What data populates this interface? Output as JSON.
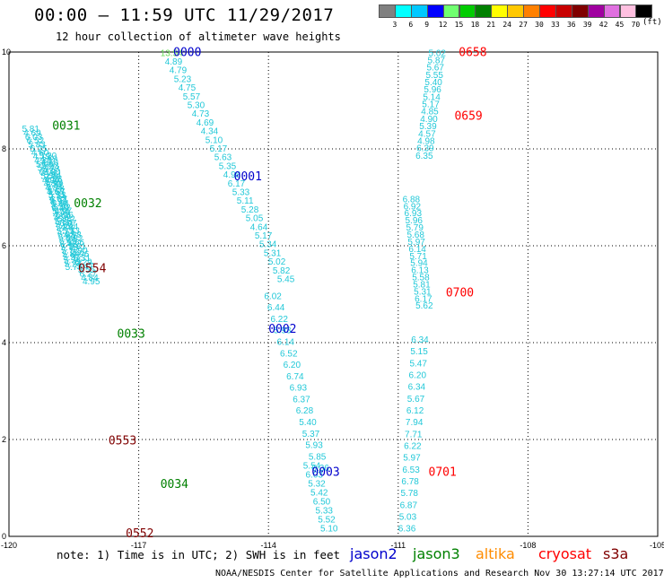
{
  "title": "00:00 — 11:59 UTC 11/29/2017",
  "subtitle": "12 hour collection of altimeter wave heights",
  "legend": {
    "unit": "(ft)",
    "bins": [
      {
        "label": "3",
        "color": "#808080"
      },
      {
        "label": "6",
        "color": "#00ffff"
      },
      {
        "label": "9",
        "color": "#00c8ff"
      },
      {
        "label": "12",
        "color": "#0000ff"
      },
      {
        "label": "15",
        "color": "#70ff70"
      },
      {
        "label": "18",
        "color": "#00cc00"
      },
      {
        "label": "21",
        "color": "#008000"
      },
      {
        "label": "24",
        "color": "#ffff00"
      },
      {
        "label": "27",
        "color": "#ffc800"
      },
      {
        "label": "30",
        "color": "#ff8000"
      },
      {
        "label": "33",
        "color": "#ff0000"
      },
      {
        "label": "36",
        "color": "#c80000"
      },
      {
        "label": "39",
        "color": "#800000"
      },
      {
        "label": "42",
        "color": "#a000a0"
      },
      {
        "label": "45",
        "color": "#e070e0"
      },
      {
        "label": "70",
        "color": "#ffc0e0"
      },
      {
        "label": "",
        "color": "#000000"
      }
    ]
  },
  "axes": {
    "x_ticks": [
      "-120",
      "-117",
      "-114",
      "-111",
      "-108",
      "-105"
    ],
    "y_ticks": [
      "0",
      "2",
      "4",
      "6",
      "8",
      "10"
    ],
    "xlim": [
      -120,
      -105
    ],
    "ylim": [
      0,
      10
    ],
    "grid": true
  },
  "footnote": "note: 1) Time is in UTC; 2) SWH is in feet",
  "satellites": [
    {
      "name": "jason2",
      "color": "#0000cc"
    },
    {
      "name": "jason3",
      "color": "#008000"
    },
    {
      "name": "altika",
      "color": "#ff8c00"
    },
    {
      "name": "cryosat",
      "color": "#ff0000"
    },
    {
      "name": "s3a",
      "color": "#800000"
    }
  ],
  "credit": "NOAA/NESDIS Center for Satellite Applications and Research   Nov 30 13:27:14 UTC 2017",
  "tracks": [
    {
      "label": "0000",
      "color": "#0000cc",
      "anchor": [
        -116.2,
        9.92
      ],
      "x0": -116.5,
      "x1": -113.8,
      "y0": 9.92,
      "y1": 5.25,
      "values": [
        "13.54",
        "4.89",
        "4.79",
        "5.23",
        "4.75",
        "5.57",
        "5.30",
        "4.73",
        "4.69",
        "4.34",
        "5.10",
        "5.17",
        "5.63",
        "5.35",
        "4.98",
        "6.17",
        "5.33",
        "5.11",
        "5.28",
        "5.05",
        "4.64",
        "5.17",
        "5.34",
        "5.31",
        "5.02",
        "5.82",
        "5.45"
      ]
    },
    {
      "label": "0001",
      "color": "#0000cc",
      "anchor": [
        -114.8,
        7.35
      ],
      "values": []
    },
    {
      "label": "0002",
      "color": "#0000cc",
      "anchor": [
        -114.0,
        4.2
      ],
      "x0": -114.1,
      "x1": -113.0,
      "y0": 4.9,
      "y1": 1.35,
      "values": [
        "6.02",
        "6.44",
        "6.22",
        "5.93",
        "6.14",
        "6.52",
        "6.20",
        "6.74",
        "6.93",
        "6.37",
        "6.28",
        "5.40",
        "5.37",
        "5.93",
        "5.85",
        "6.36"
      ]
    },
    {
      "label": "0003",
      "color": "#0000cc",
      "anchor": [
        -113.0,
        1.25
      ],
      "x0": -113.2,
      "x1": -112.8,
      "y0": 1.4,
      "y1": 0.1,
      "values": [
        "5.54",
        "6.03",
        "5.32",
        "5.42",
        "6.50",
        "5.33",
        "5.52",
        "5.10"
      ]
    },
    {
      "label": "0031",
      "color": "#008000",
      "anchor": [
        -119.0,
        8.4
      ],
      "x0": -119.7,
      "x1": -118.3,
      "y0": 8.35,
      "y1": 5.2,
      "values": [
        "5.81",
        "4.69",
        "6.03",
        "6.52",
        "5.83",
        "5.25",
        "4.60",
        "4.79",
        "4.26",
        "5.96",
        "5.77",
        "6.02",
        "5.58",
        "4.94",
        "4.59",
        "4.84",
        "4.68",
        "5.51",
        "6.37",
        "5.64",
        "5.32",
        "4.97",
        "5.16",
        "5.12",
        "6.07",
        "4.44",
        "5.33",
        "4.98",
        "6.82",
        "5.66",
        "5.81",
        "5.90",
        "4.96",
        "5.31",
        "6.29",
        "5.47",
        "5.55",
        "6.27",
        "4.84",
        "4.95"
      ]
    },
    {
      "label": "0032",
      "color": "#008000",
      "anchor": [
        -118.5,
        6.8
      ],
      "x0": -119.3,
      "x1": -118.7,
      "y0": 7.8,
      "y1": 5.5,
      "values": [
        "5.20",
        "4.79",
        "4.70",
        "5.23",
        "5.73",
        "5.80",
        "5.84",
        "4.98",
        "5.49",
        "5.52",
        "4.78",
        "5.57",
        "5.73",
        "4.62",
        "4.94",
        "5.40",
        "6.49",
        "5.54",
        "4.88",
        "4.92",
        "5.83",
        "5.60",
        "5.78",
        "5.71",
        "6.02",
        "6.90",
        "6.49",
        "6.48",
        "5.75",
        "5.77",
        "5.84",
        "5.57",
        "5.34",
        "5.27",
        "5.77"
      ]
    },
    {
      "label": "0033",
      "color": "#008000",
      "anchor": [
        -117.5,
        4.1
      ],
      "values": []
    },
    {
      "label": "0034",
      "color": "#008000",
      "anchor": [
        -116.5,
        1.0
      ],
      "values": []
    },
    {
      "label": "0552",
      "color": "#800000",
      "anchor": [
        -117.3,
        -0.02
      ],
      "values": []
    },
    {
      "label": "0553",
      "color": "#800000",
      "anchor": [
        -117.7,
        1.9
      ],
      "values": []
    },
    {
      "label": "0554",
      "color": "#800000",
      "anchor": [
        -118.4,
        5.45
      ],
      "values": []
    },
    {
      "label": "0658",
      "color": "#ff0000",
      "anchor": [
        -109.6,
        9.92
      ],
      "x0": -110.3,
      "x1": -110.6,
      "y0": 9.92,
      "y1": 7.8,
      "values": [
        "5.02",
        "5.87",
        "5.67",
        "5.55",
        "5.40",
        "5.96",
        "5.14",
        "5.17",
        "4.85",
        "4.90",
        "5.39",
        "4.57",
        "4.98",
        "6.39",
        "6.35"
      ]
    },
    {
      "label": "0659",
      "color": "#ff0000",
      "anchor": [
        -109.7,
        8.6
      ],
      "values": []
    },
    {
      "label": "0700",
      "color": "#ff0000",
      "anchor": [
        -109.9,
        4.95
      ],
      "x0": -110.9,
      "x1": -110.6,
      "y0": 6.9,
      "y1": 4.7,
      "values": [
        "6.88",
        "6.92",
        "6.93",
        "5.96",
        "5.79",
        "5.68",
        "5.97",
        "6.14",
        "5.71",
        "5.94",
        "6.13",
        "5.58",
        "5.81",
        "5.31",
        "6.17",
        "5.62"
      ]
    },
    {
      "label": "0701",
      "color": "#ff0000",
      "anchor": [
        -110.3,
        1.25
      ],
      "x0": -110.7,
      "x1": -111.0,
      "y0": 4.0,
      "y1": 0.1,
      "values": [
        "6.34",
        "5.15",
        "5.47",
        "6.20",
        "6.34",
        "5.67",
        "6.12",
        "7.94",
        "7.71",
        "6.22",
        "5.97",
        "6.53",
        "6.78",
        "5.78",
        "6.87",
        "5.03",
        "6.36"
      ]
    }
  ]
}
